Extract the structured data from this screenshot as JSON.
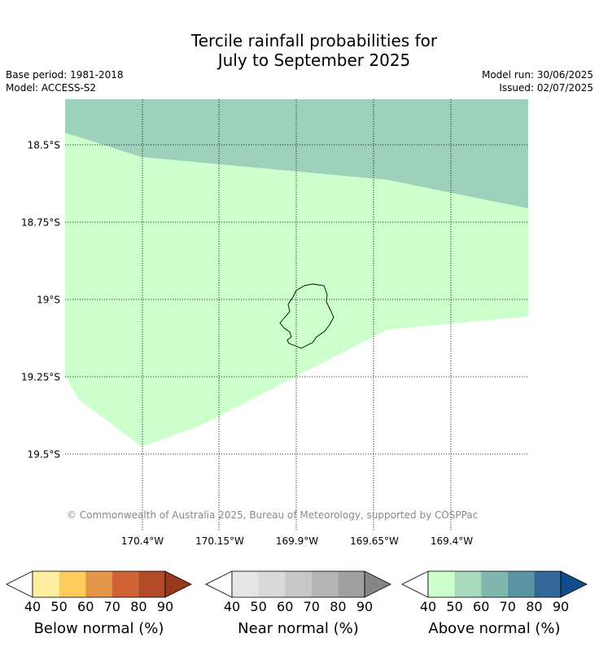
{
  "title": {
    "line1": "Tercile rainfall probabilities for",
    "line2": "July to September 2025"
  },
  "meta": {
    "base_period": "Base period: 1981-2018",
    "model": "Model: ACCESS-S2",
    "model_run": "Model run: 30/06/2025",
    "issued": "Issued: 02/07/2025"
  },
  "map": {
    "latitude_labels": [
      "18.5°S",
      "18.75°S",
      "19°S",
      "19.25°S",
      "19.5°S"
    ],
    "longitude_labels": [
      "170.4°W",
      "170.15°W",
      "169.9°W",
      "169.65°W",
      "169.4°W"
    ],
    "copyright": "© Commonwealth of Australia 2025, Bureau of Meteorology, supported by COSPPac",
    "region_colors": {
      "above_50_60": "#9dd1bb",
      "above_40_50": "#ccffcc",
      "no_data": "#ffffff"
    }
  },
  "colorbars": [
    {
      "title": "Below normal (%)",
      "ticks": [
        "40",
        "50",
        "60",
        "70",
        "80",
        "90"
      ],
      "low_color": "#ffffff",
      "colors": [
        "#ffeda0",
        "#fecc5c",
        "#e3954a",
        "#cf6333",
        "#b34a27"
      ],
      "high_color": "#99381f"
    },
    {
      "title": "Near normal (%)",
      "ticks": [
        "40",
        "50",
        "60",
        "70",
        "80",
        "90"
      ],
      "low_color": "#ffffff",
      "colors": [
        "#e5e5e5",
        "#d9d9d9",
        "#c7c7c7",
        "#b4b4b4",
        "#a0a0a0"
      ],
      "high_color": "#868686"
    },
    {
      "title": "Above normal (%)",
      "ticks": [
        "40",
        "50",
        "60",
        "70",
        "80",
        "90"
      ],
      "low_color": "#ffffff",
      "colors": [
        "#ccffcc",
        "#a7d9bb",
        "#7fb7ae",
        "#5b95a3",
        "#336699"
      ],
      "high_color": "#114d8a"
    }
  ]
}
